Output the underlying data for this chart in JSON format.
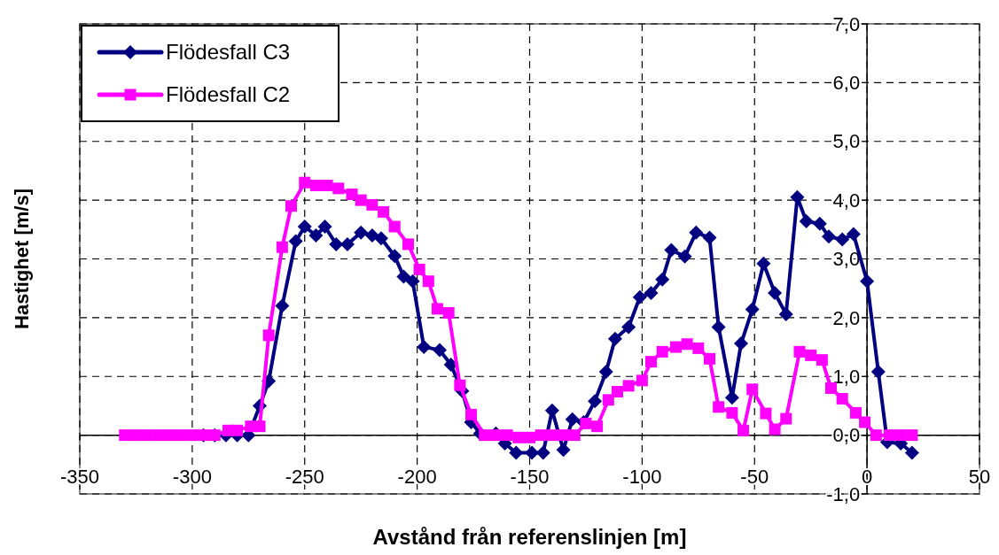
{
  "chart_data": {
    "type": "line",
    "xlabel": "Avstånd från referenslinjen [m]",
    "ylabel": "Hastighet [m/s]",
    "xlim": [
      -350,
      50
    ],
    "xticks": [
      -350,
      -300,
      -250,
      -200,
      -150,
      -100,
      -50,
      0,
      50
    ],
    "ylim": [
      -1,
      7
    ],
    "yticks": [
      {
        "value": -1,
        "label": "-1,0"
      },
      {
        "value": 0,
        "label": "0,0"
      },
      {
        "value": 1,
        "label": "1,0"
      },
      {
        "value": 2,
        "label": "2,0"
      },
      {
        "value": 3,
        "label": "3,0"
      },
      {
        "value": 4,
        "label": "4,0"
      },
      {
        "value": 5,
        "label": "5,0"
      },
      {
        "value": 6,
        "label": "6,0"
      },
      {
        "value": 7,
        "label": "7,0"
      }
    ],
    "grid": true,
    "legend": "top left",
    "line_style": "solid",
    "series": [
      {
        "name": "Flödesfall C3",
        "color": "#000080",
        "marker": "diamond",
        "x": [
          -295,
          -290,
          -285,
          -280,
          -275,
          -270,
          -266,
          -260,
          -254,
          -250,
          -245,
          -241,
          -236,
          -231,
          -225,
          -220,
          -216,
          -210,
          -206,
          -202,
          -197,
          -190,
          -185,
          -180,
          -176,
          -172,
          -165,
          -161,
          -156,
          -149,
          -144,
          -140,
          -135,
          -131,
          -126,
          -121,
          -116,
          -112,
          -106,
          -101,
          -96,
          -91,
          -87,
          -81,
          -76,
          -70,
          -66,
          -60,
          -56,
          -51,
          -46,
          -41,
          -36,
          -31,
          -27,
          -21,
          -17,
          -11,
          -6,
          0,
          5,
          9,
          15,
          20
        ],
        "values": [
          0,
          0,
          0,
          0,
          0,
          0.5,
          0.92,
          2.2,
          3.3,
          3.55,
          3.4,
          3.55,
          3.25,
          3.25,
          3.45,
          3.4,
          3.35,
          3.05,
          2.7,
          2.62,
          1.5,
          1.45,
          1.2,
          0.75,
          0.22,
          0.03,
          0.03,
          -0.14,
          -0.3,
          -0.3,
          -0.3,
          0.42,
          -0.25,
          0.27,
          0.22,
          0.58,
          1.08,
          1.64,
          1.84,
          2.35,
          2.42,
          2.65,
          3.15,
          3.04,
          3.45,
          3.36,
          1.84,
          0.64,
          1.56,
          2.14,
          2.92,
          2.42,
          2.06,
          4.05,
          3.64,
          3.6,
          3.38,
          3.33,
          3.42,
          2.62,
          1.08,
          -0.12,
          -0.14,
          -0.3
        ]
      },
      {
        "name": "Flödesfall C2",
        "color": "#ff00ff",
        "marker": "square",
        "x": [
          -330,
          -325,
          -320,
          -315,
          -310,
          -305,
          -300,
          -295,
          -290,
          -284,
          -280,
          -274,
          -270,
          -266,
          -260,
          -256,
          -250,
          -245,
          -240,
          -235,
          -229,
          -225,
          -220,
          -215,
          -210,
          -204,
          -199,
          -195,
          -191,
          -186,
          -181,
          -176,
          -170,
          -165,
          -160,
          -155,
          -150,
          -145,
          -140,
          -135,
          -130,
          -125,
          -120,
          -115,
          -111,
          -106,
          -100,
          -96,
          -91,
          -85,
          -80,
          -75,
          -70,
          -66,
          -60,
          -55,
          -51,
          -45,
          -41,
          -36,
          -30,
          -25,
          -20,
          -16,
          -11,
          -5,
          -1,
          4,
          10,
          15,
          20
        ],
        "values": [
          0,
          0,
          0,
          0,
          0,
          0,
          0,
          0,
          0,
          0.08,
          0.08,
          0.15,
          0.15,
          1.7,
          3.2,
          3.9,
          4.3,
          4.25,
          4.25,
          4.2,
          4.1,
          4.0,
          3.92,
          3.8,
          3.55,
          3.25,
          2.82,
          2.62,
          2.15,
          2.08,
          0.85,
          0.35,
          0,
          0,
          0,
          -0.04,
          -0.04,
          0,
          0,
          0,
          0,
          0.2,
          0.15,
          0.6,
          0.74,
          0.84,
          0.93,
          1.25,
          1.42,
          1.5,
          1.55,
          1.48,
          1.3,
          0.48,
          0.38,
          0.08,
          0.78,
          0.37,
          0.1,
          0.28,
          1.42,
          1.36,
          1.28,
          0.8,
          0.62,
          0.38,
          0.22,
          0,
          0,
          0,
          0
        ]
      }
    ]
  }
}
